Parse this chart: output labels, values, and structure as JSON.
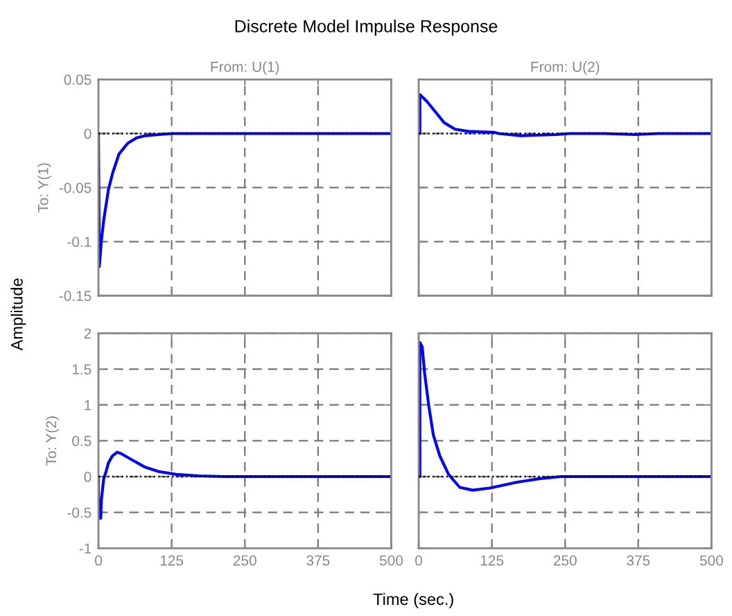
{
  "chart_data": [
    {
      "type": "line",
      "title": "From: U(1)",
      "ylabel": "To: Y(1)",
      "annotations": [
        "Discrete Model Impulse Response",
        "Time (sec.)",
        "Amplitude"
      ],
      "xlim": [
        0,
        500
      ],
      "xticks": [
        0,
        125,
        250,
        375,
        500
      ],
      "ylim": [
        -0.15,
        0.05
      ],
      "yticks": [
        -0.15,
        -0.1,
        -0.05,
        0,
        0.05
      ],
      "tick_labels": "y",
      "grid": true,
      "ref_lines": [
        {
          "axis": "y",
          "value": 0,
          "color": "#000000",
          "line_style": "dotted"
        }
      ],
      "series": [
        {
          "color": "#0000ff",
          "x": [
            0,
            1.5,
            5,
            9,
            17,
            24,
            35,
            50,
            65,
            80,
            103,
            126,
            500
          ],
          "values": [
            0,
            -0.123,
            -0.099,
            -0.08,
            -0.052,
            -0.037,
            -0.019,
            -0.009,
            -0.004,
            -0.002,
            -0.001,
            0,
            0
          ]
        }
      ]
    },
    {
      "type": "line",
      "title": "From: U(2)",
      "xlim": [
        0,
        500
      ],
      "xticks": [
        0,
        125,
        250,
        375,
        500
      ],
      "ylim": [
        -0.15,
        0.05
      ],
      "yticks": [
        -0.15,
        -0.1,
        -0.05,
        0,
        0.05
      ],
      "tick_labels": false,
      "grid": true,
      "ref_lines": [
        {
          "axis": "y",
          "value": 0,
          "color": "#000000",
          "line_style": "dotted"
        }
      ],
      "series": [
        {
          "color": "#0000ff",
          "x": [
            0,
            2,
            2,
            13.5,
            28.5,
            43.5,
            62,
            85,
            130,
            137,
            175,
            235,
            257,
            317,
            370,
            408,
            500
          ],
          "values": [
            0,
            0,
            0.036,
            0.03,
            0.02,
            0.01,
            0.004,
            0.002,
            0.001,
            0,
            -0.002,
            -0.001,
            0,
            0,
            -0.001,
            0,
            0
          ]
        }
      ]
    },
    {
      "type": "line",
      "ylabel": "To: Y(2)",
      "xlim": [
        0,
        500
      ],
      "xticks": [
        0,
        125,
        250,
        375,
        500
      ],
      "ylim": [
        -1,
        2
      ],
      "yticks": [
        -1,
        -0.5,
        0,
        0.5,
        1,
        1.5,
        2
      ],
      "grid": true,
      "ref_lines": [
        {
          "axis": "y",
          "value": 0,
          "color": "#000000",
          "line_style": "dotted"
        }
      ],
      "series": [
        {
          "color": "#0000ff",
          "x": [
            0,
            0,
            4,
            5,
            9,
            13,
            17,
            24,
            32,
            39,
            58,
            80,
            103,
            133,
            171,
            216,
            500
          ],
          "values": [
            0,
            -0.58,
            -0.58,
            -0.32,
            -0.03,
            0.07,
            0.19,
            0.29,
            0.34,
            0.32,
            0.23,
            0.13,
            0.07,
            0.03,
            0.01,
            0,
            0
          ]
        }
      ]
    },
    {
      "type": "line",
      "xlim": [
        0,
        500
      ],
      "xticks": [
        0,
        125,
        250,
        375,
        500
      ],
      "ylim": [
        -1,
        2
      ],
      "yticks": [
        -1,
        -0.5,
        0,
        0.5,
        1,
        1.5,
        2
      ],
      "tick_labels": "x",
      "grid": true,
      "ref_lines": [
        {
          "axis": "y",
          "value": 0,
          "color": "#000000",
          "line_style": "dotted"
        }
      ],
      "series": [
        {
          "color": "#0000ff",
          "x": [
            0,
            2,
            2,
            6,
            10,
            17,
            25,
            36,
            51,
            70,
            92,
            122,
            167,
            205,
            243,
            500
          ],
          "values": [
            0,
            0,
            1.87,
            1.81,
            1.45,
            1.0,
            0.58,
            0.29,
            0.03,
            -0.15,
            -0.19,
            -0.16,
            -0.08,
            -0.03,
            0,
            0
          ]
        }
      ]
    }
  ]
}
